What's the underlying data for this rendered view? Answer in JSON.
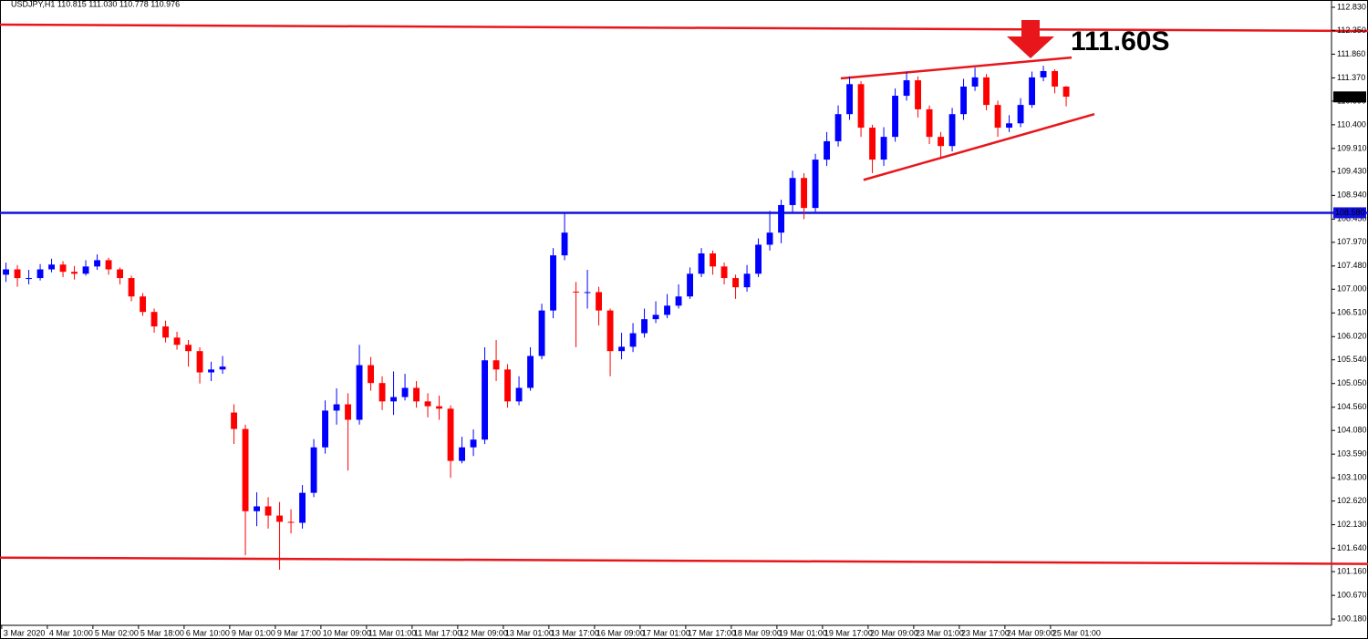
{
  "chart_data": {
    "type": "candlestick",
    "title": "USDJPY,H1  110.815 111.030 110.778 110.976",
    "up_color": "#0000ff",
    "down_color": "#ff0000",
    "xlim": [
      -0.6,
      466.6
    ],
    "ylim": [
      100.05,
      112.98
    ],
    "xticks": [
      {
        "value": 0,
        "label": "3 Mar 2020"
      },
      {
        "value": 16,
        "label": "4 Mar 10:00"
      },
      {
        "value": 32,
        "label": "5 Mar 02:00"
      },
      {
        "value": 48,
        "label": "5 Mar 18:00"
      },
      {
        "value": 64,
        "label": "6 Mar 10:00"
      },
      {
        "value": 80,
        "label": "9 Mar 01:00"
      },
      {
        "value": 96,
        "label": "9 Mar 17:00"
      },
      {
        "value": 112,
        "label": "10 Mar 09:00"
      },
      {
        "value": 128,
        "label": "11 Mar 01:00"
      },
      {
        "value": 144,
        "label": "11 Mar 17:00"
      },
      {
        "value": 160,
        "label": "12 Mar 09:00"
      },
      {
        "value": 176,
        "label": "13 Mar 01:00"
      },
      {
        "value": 192,
        "label": "13 Mar 17:00"
      },
      {
        "value": 208,
        "label": "16 Mar 09:00"
      },
      {
        "value": 224,
        "label": "17 Mar 01:00"
      },
      {
        "value": 240,
        "label": "17 Mar 17:00"
      },
      {
        "value": 256,
        "label": "18 Mar 09:00"
      },
      {
        "value": 272,
        "label": "19 Mar 01:00"
      },
      {
        "value": 288,
        "label": "19 Mar 17:00"
      },
      {
        "value": 304,
        "label": "20 Mar 09:00"
      },
      {
        "value": 320,
        "label": "23 Mar 01:00"
      },
      {
        "value": 336,
        "label": "23 Mar 17:00"
      },
      {
        "value": 352,
        "label": "24 Mar 09:00"
      },
      {
        "value": 368,
        "label": "25 Mar 01:00"
      }
    ],
    "yticks": [
      {
        "value": 112.83,
        "label": "112.830"
      },
      {
        "value": 112.35,
        "label": "112.350"
      },
      {
        "value": 111.86,
        "label": "111.860"
      },
      {
        "value": 111.37,
        "label": "111.370"
      },
      {
        "value": 110.89,
        "label": "110.890"
      },
      {
        "value": 110.4,
        "label": "110.400"
      },
      {
        "value": 109.91,
        "label": "109.910"
      },
      {
        "value": 109.43,
        "label": "109.430"
      },
      {
        "value": 108.94,
        "label": "108.940"
      },
      {
        "value": 108.45,
        "label": "108.450"
      },
      {
        "value": 107.97,
        "label": "107.970"
      },
      {
        "value": 107.48,
        "label": "107.480"
      },
      {
        "value": 107,
        "label": "107.000"
      },
      {
        "value": 106.51,
        "label": "106.510"
      },
      {
        "value": 106.02,
        "label": "106.020"
      },
      {
        "value": 105.54,
        "label": "105.540"
      },
      {
        "value": 105.05,
        "label": "105.050"
      },
      {
        "value": 104.56,
        "label": "104.560"
      },
      {
        "value": 104.08,
        "label": "104.080"
      },
      {
        "value": 103.59,
        "label": "103.590"
      },
      {
        "value": 103.1,
        "label": "103.100"
      },
      {
        "value": 102.62,
        "label": "102.620"
      },
      {
        "value": 102.13,
        "label": "102.130"
      },
      {
        "value": 101.64,
        "label": "101.640"
      },
      {
        "value": 101.16,
        "label": "101.160"
      },
      {
        "value": 100.67,
        "label": "100.670"
      },
      {
        "value": 100.18,
        "label": "100.180"
      }
    ],
    "x": [
      1.5,
      5.5,
      9.5,
      13.5,
      17.5,
      21.5,
      25.5,
      29.5,
      33.5,
      37.5,
      41.5,
      45.5,
      49.5,
      53.5,
      57.5,
      61.5,
      65.5,
      69.5,
      73.5,
      77.5,
      81.5,
      85.5,
      89.5,
      93.5,
      97.5,
      101.5,
      105.5,
      109.5,
      113.5,
      117.5,
      121.5,
      125.5,
      129.5,
      133.5,
      137.5,
      141.5,
      145.5,
      149.5,
      153.5,
      157.5,
      161.5,
      165.5,
      169.5,
      173.5,
      177.5,
      181.5,
      185.5,
      189.5,
      193.5,
      197.5,
      201.5,
      205.5,
      209.5,
      213.5,
      217.5,
      221.5,
      225.5,
      229.5,
      233.5,
      237.5,
      241.5,
      245.5,
      249.5,
      253.5,
      257.5,
      261.5,
      265.5,
      269.5,
      273.5,
      277.5,
      281.5,
      285.5,
      289.5,
      293.5,
      297.5,
      301.5,
      305.5,
      309.5,
      313.5,
      317.5,
      321.5,
      325.5,
      329.5,
      333.5,
      337.5,
      341.5,
      345.5,
      349.5,
      353.5,
      357.5,
      361.5,
      365.5,
      369.5,
      373.5
    ],
    "open": [
      107.3,
      107.41,
      107.23,
      107.23,
      107.41,
      107.51,
      107.36,
      107.32,
      107.47,
      107.6,
      107.41,
      107.23,
      106.85,
      106.53,
      106.23,
      106.0,
      105.85,
      105.72,
      105.28,
      105.34,
      104.45,
      104.11,
      102.41,
      102.51,
      102.32,
      102.19,
      102.17,
      102.79,
      103.73,
      104.49,
      104.62,
      104.3,
      105.43,
      105.06,
      104.68,
      104.77,
      104.96,
      104.68,
      104.58,
      104.53,
      103.45,
      103.73,
      103.89,
      105.53,
      105.34,
      104.68,
      104.96,
      105.62,
      106.56,
      107.7,
      106.95,
      106.94,
      106.94,
      106.56,
      105.72,
      105.81,
      106.09,
      106.38,
      106.47,
      106.66,
      106.85,
      107.32,
      107.74,
      107.47,
      107.23,
      107.04,
      107.32,
      107.92,
      108.17,
      108.74,
      109.3,
      108.68,
      109.68,
      110.06,
      110.62,
      111.24,
      110.34,
      109.68,
      110.15,
      111.0,
      111.32,
      110.72,
      110.15,
      109.96,
      110.62,
      111.19,
      111.38,
      110.81,
      110.34,
      110.43,
      110.81,
      111.38,
      111.51,
      111.19
    ],
    "high": [
      107.55,
      107.5,
      107.4,
      107.52,
      107.63,
      107.58,
      107.48,
      107.6,
      107.72,
      107.65,
      107.45,
      107.28,
      106.92,
      106.6,
      106.35,
      106.12,
      105.95,
      105.8,
      105.5,
      105.62,
      104.62,
      104.2,
      102.8,
      102.7,
      102.6,
      102.45,
      102.95,
      103.9,
      104.7,
      104.95,
      104.85,
      105.85,
      105.6,
      105.2,
      105.3,
      105.25,
      105.1,
      104.85,
      104.8,
      104.6,
      103.95,
      104.1,
      105.8,
      105.95,
      105.45,
      105.2,
      105.8,
      106.7,
      107.85,
      108.58,
      107.15,
      107.4,
      107.05,
      106.6,
      106.1,
      106.3,
      106.6,
      106.75,
      106.9,
      107.1,
      107.45,
      107.85,
      107.8,
      107.55,
      107.3,
      107.5,
      108.05,
      108.62,
      108.85,
      109.45,
      109.4,
      109.8,
      110.25,
      110.8,
      111.4,
      111.3,
      110.4,
      110.35,
      111.15,
      111.5,
      111.4,
      110.8,
      110.25,
      110.75,
      111.35,
      111.58,
      111.45,
      110.9,
      110.6,
      110.95,
      111.5,
      111.62,
      111.55,
      111.2
    ],
    "low": [
      107.15,
      107.05,
      107.1,
      107.18,
      107.35,
      107.25,
      107.2,
      107.28,
      107.4,
      107.3,
      107.1,
      106.75,
      106.45,
      106.1,
      105.9,
      105.75,
      105.4,
      105.05,
      105.1,
      105.25,
      103.8,
      101.5,
      102.1,
      102.05,
      101.2,
      101.95,
      102.05,
      102.7,
      103.6,
      104.2,
      103.25,
      104.2,
      104.9,
      104.5,
      104.4,
      104.7,
      104.55,
      104.35,
      104.3,
      103.1,
      103.4,
      103.55,
      103.8,
      105.1,
      104.55,
      104.6,
      104.9,
      105.55,
      106.4,
      107.6,
      105.8,
      106.6,
      106.25,
      105.2,
      105.55,
      105.7,
      106.0,
      106.3,
      106.4,
      106.6,
      106.8,
      107.25,
      107.3,
      107.1,
      106.8,
      106.95,
      107.25,
      107.8,
      107.95,
      108.6,
      108.45,
      108.6,
      109.55,
      109.95,
      110.5,
      110.15,
      109.4,
      109.55,
      110.05,
      110.9,
      110.55,
      110.0,
      109.7,
      109.85,
      110.5,
      111.1,
      110.7,
      110.15,
      110.25,
      110.35,
      110.75,
      111.3,
      111.05,
      110.78
    ],
    "close": [
      107.41,
      107.23,
      107.23,
      107.41,
      107.51,
      107.36,
      107.32,
      107.47,
      107.6,
      107.41,
      107.23,
      106.85,
      106.53,
      106.23,
      106.0,
      105.85,
      105.72,
      105.28,
      105.34,
      105.4,
      104.11,
      102.41,
      102.51,
      102.32,
      102.19,
      102.17,
      102.79,
      103.73,
      104.49,
      104.62,
      104.3,
      105.43,
      105.06,
      104.68,
      104.77,
      104.96,
      104.68,
      104.58,
      104.53,
      103.45,
      103.73,
      103.89,
      105.53,
      105.34,
      104.68,
      104.96,
      105.62,
      106.56,
      107.7,
      108.17,
      106.94,
      106.94,
      106.56,
      105.72,
      105.81,
      106.09,
      106.38,
      106.47,
      106.66,
      106.85,
      107.32,
      107.74,
      107.47,
      107.23,
      107.04,
      107.32,
      107.92,
      108.17,
      108.74,
      109.3,
      108.68,
      109.68,
      110.06,
      110.62,
      111.24,
      110.34,
      109.68,
      110.15,
      111.0,
      111.32,
      110.72,
      110.15,
      109.96,
      110.62,
      111.19,
      111.38,
      110.81,
      110.34,
      110.43,
      110.81,
      111.38,
      111.51,
      111.19,
      110.98
    ],
    "lines": [
      {
        "color": "#e8161b",
        "x": [
          -0.6,
          479.4
        ],
        "y": [
          112.47,
          112.34
        ]
      },
      {
        "color": "#e8161b",
        "x": [
          -0.6,
          479.4
        ],
        "y": [
          101.45,
          101.32
        ]
      },
      {
        "color": "#1010e0",
        "x": [
          -0.6,
          479.4
        ],
        "y": [
          108.58,
          108.58
        ]
      },
      {
        "color": "#e8161b",
        "x": [
          294.4,
          375.4
        ],
        "y": [
          111.36,
          111.79
        ]
      },
      {
        "color": "#e8161b",
        "x": [
          302.4,
          383.4
        ],
        "y": [
          109.26,
          110.62
        ]
      }
    ],
    "level_labels": [
      {
        "value": 110.976,
        "label": "110.976",
        "color": "#000000"
      },
      {
        "value": 108.58,
        "label": "108.580",
        "color": "#1010e0"
      }
    ],
    "annotation": {
      "text": "111.60S",
      "color": "#e8161b"
    }
  }
}
